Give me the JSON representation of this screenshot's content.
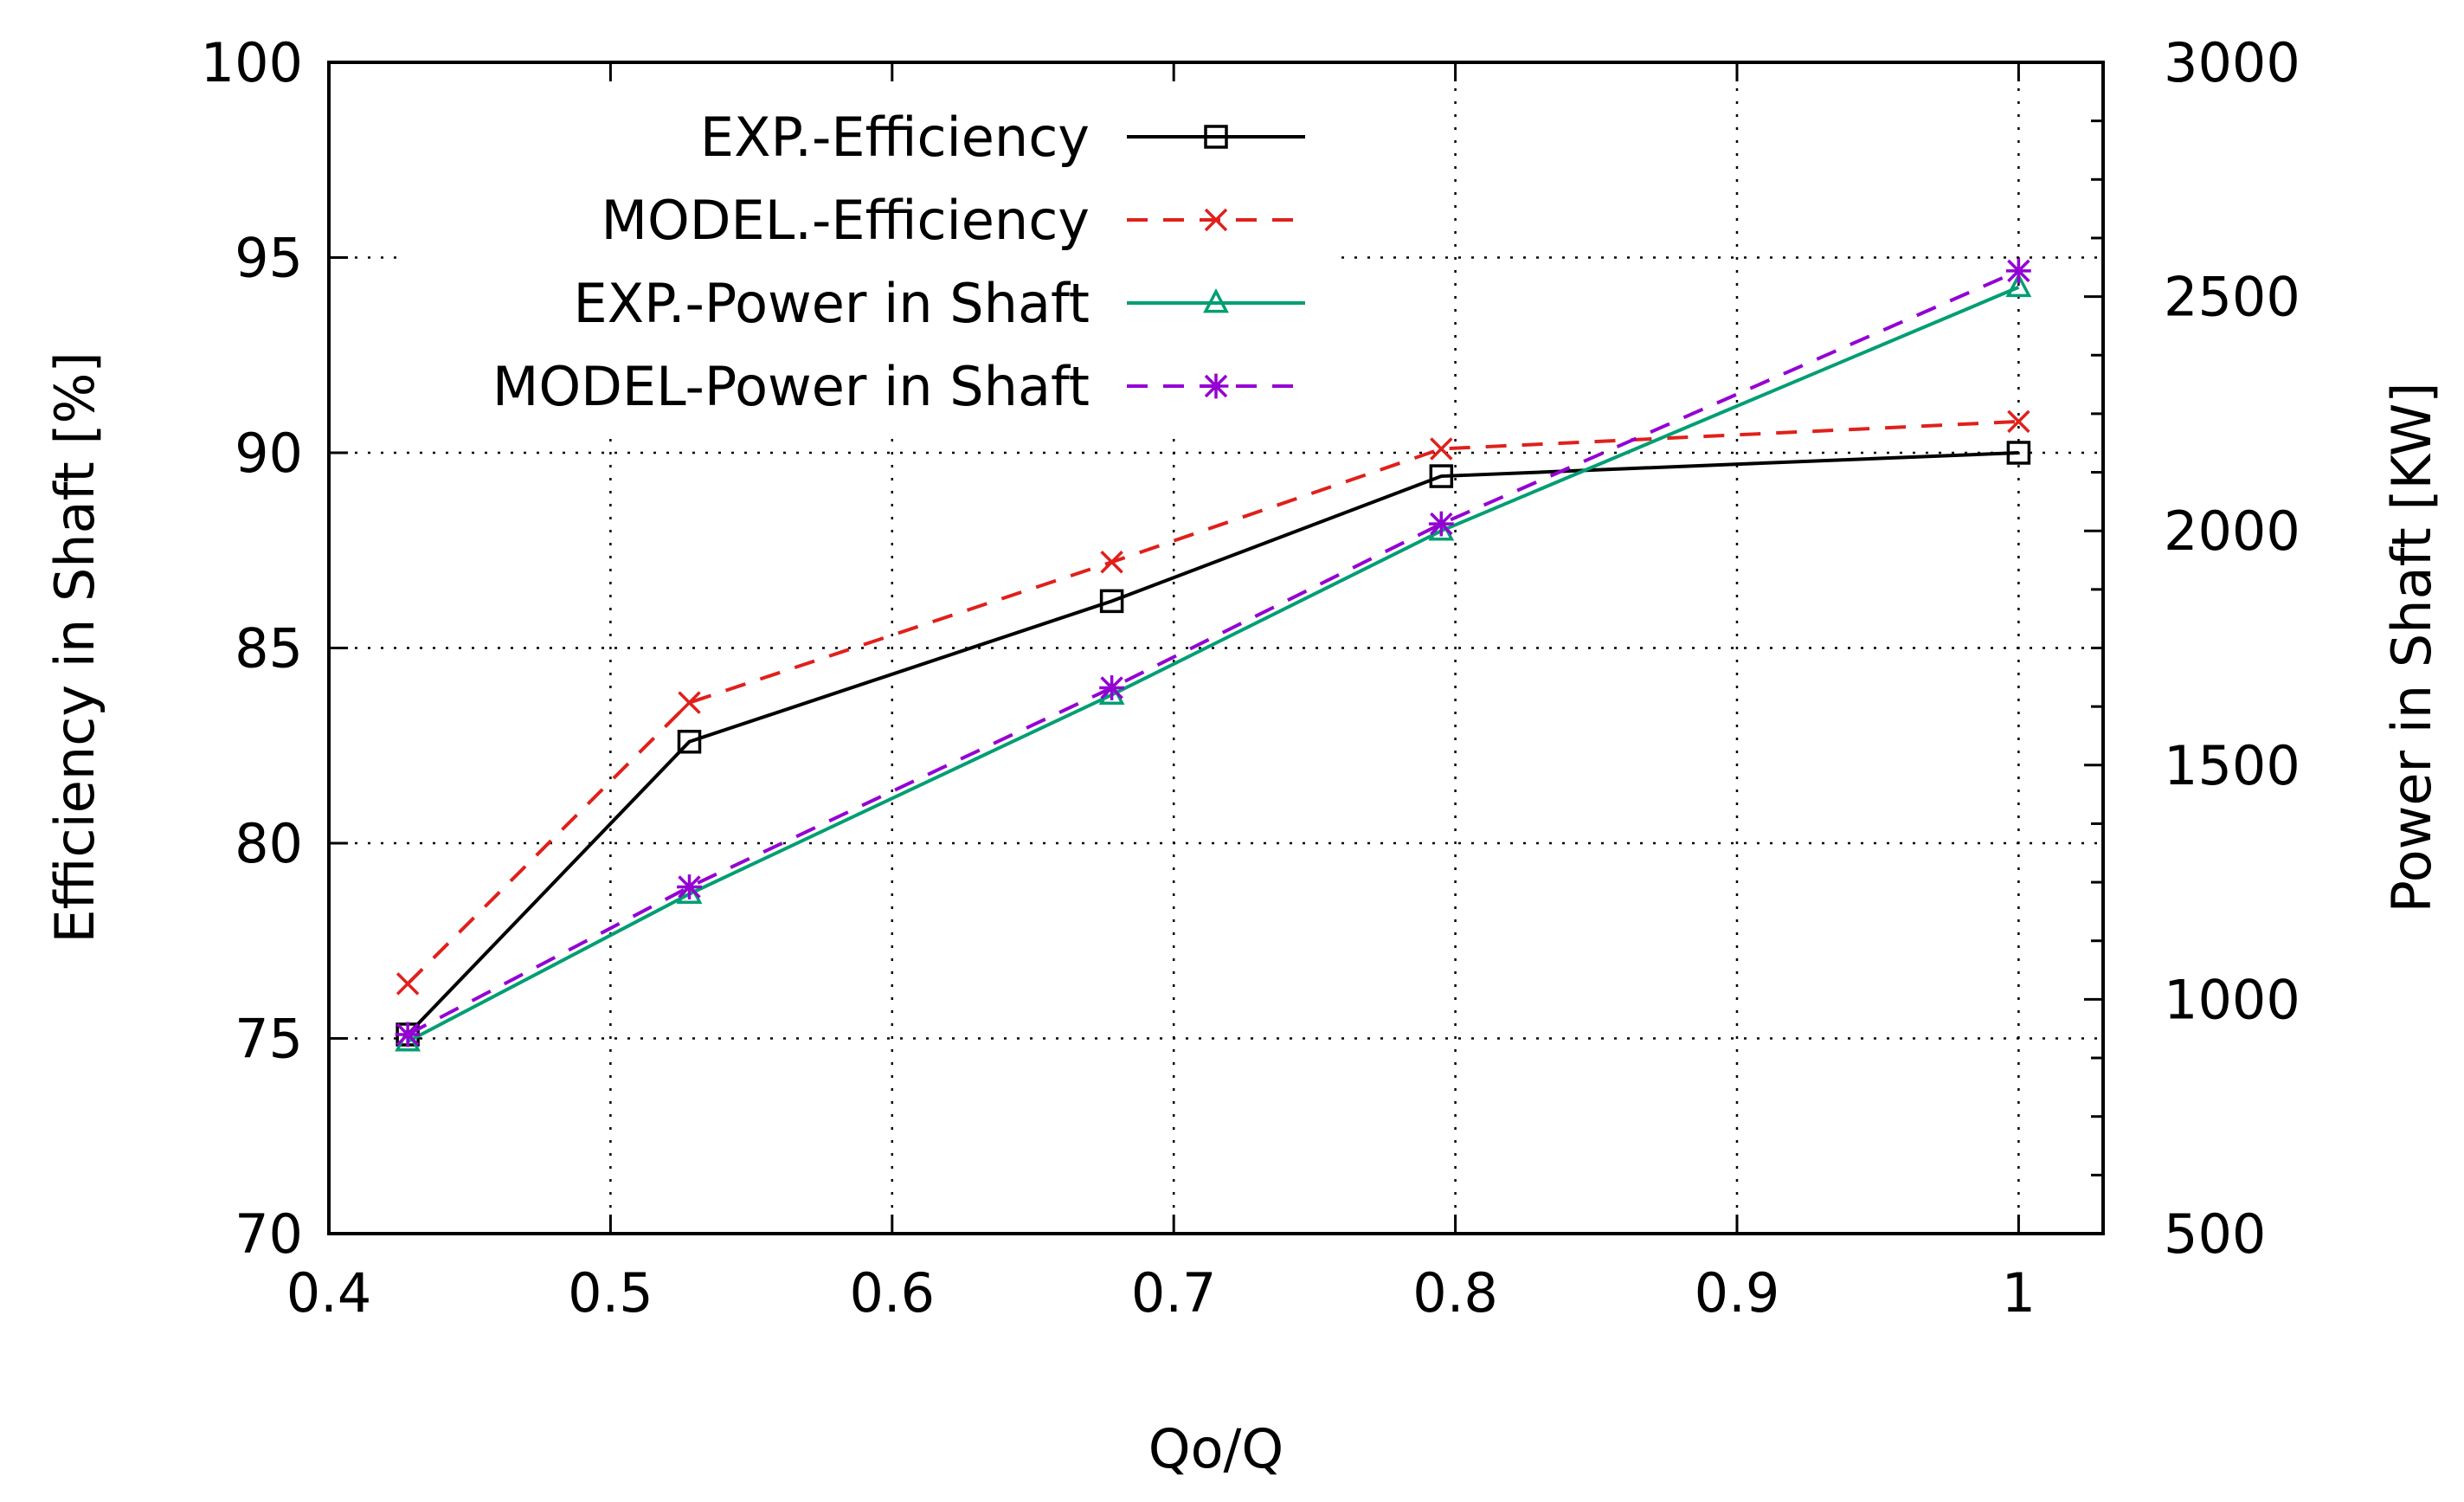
{
  "chart_data": {
    "type": "line",
    "xlabel": "Qo/Q",
    "ylabel": "Efficiency in Shaft [%]",
    "y2label": "Power in Shaft [KW]",
    "xlim": [
      0.4,
      1.03
    ],
    "ylim": [
      70,
      100
    ],
    "y2lim": [
      500,
      3000
    ],
    "x_ticks": [
      0.4,
      0.5,
      0.6,
      0.7,
      0.8,
      0.9,
      1
    ],
    "x_tick_labels": [
      "0.4",
      "0.5",
      "0.6",
      "0.7",
      "0.8",
      "0.9",
      "1"
    ],
    "y_ticks": [
      70,
      75,
      80,
      85,
      90,
      95,
      100
    ],
    "y_tick_labels": [
      "70",
      "75",
      "80",
      "85",
      "90",
      "95",
      "100"
    ],
    "y2_ticks": [
      500,
      1000,
      1500,
      2000,
      2500,
      3000
    ],
    "y2_tick_labels": [
      "500",
      "1000",
      "1500",
      "2000",
      "2500",
      "3000"
    ],
    "y2_minor_step": 125,
    "grid": true,
    "legend_position": "top-left",
    "series": [
      {
        "name": "EXP.-Efficiency",
        "axis": "y",
        "color": "#000000",
        "dash": "solid",
        "marker": "square",
        "x": [
          0.428,
          0.528,
          0.678,
          0.795,
          1.0
        ],
        "y": [
          75.1,
          82.6,
          86.2,
          89.4,
          90.0
        ]
      },
      {
        "name": "MODEL.-Efficiency",
        "axis": "y",
        "color": "#e0201b",
        "dash": "dashed",
        "marker": "x",
        "x": [
          0.428,
          0.528,
          0.678,
          0.795,
          1.0
        ],
        "y": [
          76.4,
          83.6,
          87.2,
          90.1,
          90.8
        ]
      },
      {
        "name": "EXP.-Power in Shaft",
        "axis": "y2",
        "color": "#009e73",
        "dash": "solid",
        "marker": "triangle",
        "x": [
          0.428,
          0.528,
          0.678,
          0.795,
          1.0
        ],
        "y": [
          910,
          1225,
          1650,
          2000,
          2520
        ]
      },
      {
        "name": "MODEL-Power in Shaft",
        "axis": "y2",
        "color": "#9400d3",
        "dash": "dashed",
        "marker": "star",
        "x": [
          0.428,
          0.528,
          0.678,
          0.795,
          1.0
        ],
        "y": [
          925,
          1240,
          1665,
          2015,
          2555
        ]
      }
    ]
  }
}
